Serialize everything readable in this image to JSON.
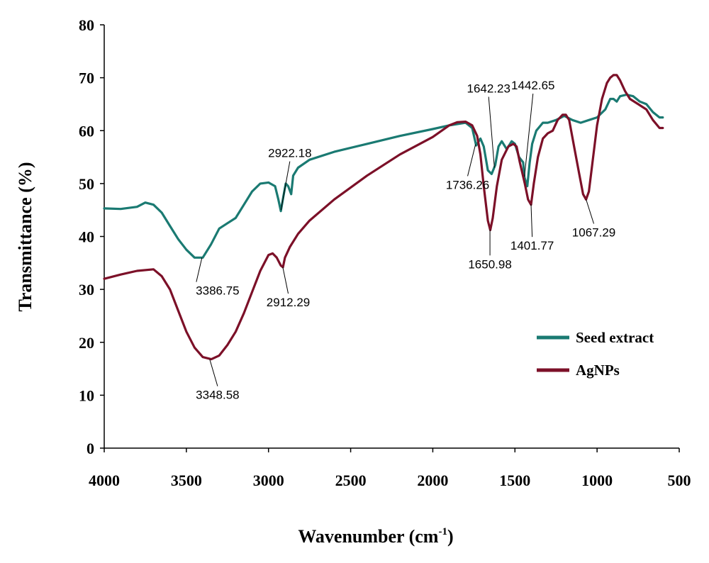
{
  "chart_data": {
    "type": "line",
    "xlabel": "Wavenumber (cm",
    "xlabel_sup": "-1",
    "xlabel_end": ")",
    "ylabel": "Transmittance (%)",
    "xlim": [
      4000,
      500
    ],
    "ylim": [
      0,
      80
    ],
    "x_ticks": [
      4000,
      3500,
      3000,
      2500,
      2000,
      1500,
      1000,
      500
    ],
    "y_ticks": [
      0,
      10,
      20,
      30,
      40,
      50,
      60,
      70,
      80
    ],
    "grid": false,
    "legend_position": "bottom-right",
    "series": [
      {
        "name": "Seed extract",
        "color": "#1a7a72",
        "points": [
          [
            4000,
            45.3
          ],
          [
            3900,
            45.2
          ],
          [
            3800,
            45.6
          ],
          [
            3750,
            46.4
          ],
          [
            3700,
            46.0
          ],
          [
            3650,
            44.5
          ],
          [
            3600,
            42.0
          ],
          [
            3550,
            39.5
          ],
          [
            3500,
            37.5
          ],
          [
            3450,
            36.0
          ],
          [
            3400,
            36.0
          ],
          [
            3350,
            38.5
          ],
          [
            3300,
            41.5
          ],
          [
            3250,
            42.5
          ],
          [
            3200,
            43.5
          ],
          [
            3150,
            46.0
          ],
          [
            3100,
            48.5
          ],
          [
            3050,
            50.0
          ],
          [
            3000,
            50.2
          ],
          [
            2960,
            49.5
          ],
          [
            2940,
            47.0
          ],
          [
            2925,
            44.8
          ],
          [
            2910,
            47.5
          ],
          [
            2895,
            50.0
          ],
          [
            2880,
            49.5
          ],
          [
            2862,
            48.0
          ],
          [
            2850,
            51.5
          ],
          [
            2820,
            53.0
          ],
          [
            2750,
            54.5
          ],
          [
            2600,
            56.0
          ],
          [
            2400,
            57.5
          ],
          [
            2200,
            59.0
          ],
          [
            2000,
            60.3
          ],
          [
            1900,
            61.0
          ],
          [
            1800,
            61.5
          ],
          [
            1760,
            60.5
          ],
          [
            1736,
            57.2
          ],
          [
            1710,
            58.5
          ],
          [
            1690,
            57.0
          ],
          [
            1665,
            52.5
          ],
          [
            1642,
            51.8
          ],
          [
            1620,
            53.5
          ],
          [
            1600,
            57.0
          ],
          [
            1580,
            58.0
          ],
          [
            1550,
            56.5
          ],
          [
            1520,
            58.0
          ],
          [
            1500,
            57.5
          ],
          [
            1475,
            55.0
          ],
          [
            1450,
            54.0
          ],
          [
            1442,
            51.2
          ],
          [
            1425,
            49.5
          ],
          [
            1410,
            54.0
          ],
          [
            1395,
            57.5
          ],
          [
            1370,
            60.0
          ],
          [
            1330,
            61.5
          ],
          [
            1300,
            61.5
          ],
          [
            1250,
            62.0
          ],
          [
            1200,
            62.8
          ],
          [
            1150,
            62.0
          ],
          [
            1100,
            61.5
          ],
          [
            1050,
            62.0
          ],
          [
            1000,
            62.5
          ],
          [
            950,
            64.0
          ],
          [
            920,
            66.0
          ],
          [
            900,
            66.0
          ],
          [
            880,
            65.5
          ],
          [
            860,
            66.5
          ],
          [
            820,
            66.8
          ],
          [
            780,
            66.5
          ],
          [
            740,
            65.5
          ],
          [
            700,
            65.0
          ],
          [
            660,
            63.5
          ],
          [
            620,
            62.5
          ],
          [
            600,
            62.5
          ]
        ]
      },
      {
        "name": "AgNPs",
        "color": "#7c1028",
        "points": [
          [
            4000,
            32.0
          ],
          [
            3900,
            32.8
          ],
          [
            3800,
            33.5
          ],
          [
            3700,
            33.8
          ],
          [
            3650,
            32.5
          ],
          [
            3600,
            30.0
          ],
          [
            3550,
            26.0
          ],
          [
            3500,
            22.0
          ],
          [
            3450,
            19.0
          ],
          [
            3400,
            17.2
          ],
          [
            3348,
            16.8
          ],
          [
            3300,
            17.5
          ],
          [
            3250,
            19.5
          ],
          [
            3200,
            22.0
          ],
          [
            3150,
            25.5
          ],
          [
            3100,
            29.5
          ],
          [
            3050,
            33.5
          ],
          [
            3000,
            36.5
          ],
          [
            2975,
            36.8
          ],
          [
            2950,
            36.0
          ],
          [
            2925,
            34.5
          ],
          [
            2912,
            34.2
          ],
          [
            2900,
            36.0
          ],
          [
            2870,
            38.0
          ],
          [
            2820,
            40.5
          ],
          [
            2750,
            43.0
          ],
          [
            2600,
            47.0
          ],
          [
            2400,
            51.5
          ],
          [
            2200,
            55.5
          ],
          [
            2000,
            58.8
          ],
          [
            1900,
            61.0
          ],
          [
            1850,
            61.6
          ],
          [
            1800,
            61.7
          ],
          [
            1760,
            61.0
          ],
          [
            1730,
            59.0
          ],
          [
            1710,
            55.5
          ],
          [
            1690,
            49.5
          ],
          [
            1665,
            43.0
          ],
          [
            1650,
            41.2
          ],
          [
            1635,
            43.5
          ],
          [
            1610,
            49.5
          ],
          [
            1580,
            54.5
          ],
          [
            1540,
            57.0
          ],
          [
            1510,
            57.5
          ],
          [
            1490,
            57.0
          ],
          [
            1470,
            54.0
          ],
          [
            1440,
            50.0
          ],
          [
            1420,
            47.0
          ],
          [
            1402,
            46.0
          ],
          [
            1385,
            50.0
          ],
          [
            1360,
            55.0
          ],
          [
            1330,
            58.5
          ],
          [
            1300,
            59.5
          ],
          [
            1270,
            60.0
          ],
          [
            1240,
            62.0
          ],
          [
            1210,
            63.0
          ],
          [
            1190,
            63.0
          ],
          [
            1170,
            62.0
          ],
          [
            1140,
            57.0
          ],
          [
            1110,
            52.0
          ],
          [
            1085,
            48.0
          ],
          [
            1067,
            47.0
          ],
          [
            1050,
            48.5
          ],
          [
            1030,
            53.5
          ],
          [
            1000,
            61.0
          ],
          [
            970,
            66.0
          ],
          [
            940,
            69.0
          ],
          [
            920,
            70.0
          ],
          [
            900,
            70.5
          ],
          [
            880,
            70.5
          ],
          [
            860,
            69.5
          ],
          [
            830,
            67.5
          ],
          [
            800,
            66.0
          ],
          [
            750,
            65.0
          ],
          [
            700,
            64.0
          ],
          [
            660,
            62.0
          ],
          [
            620,
            60.5
          ],
          [
            600,
            60.5
          ]
        ]
      }
    ],
    "annotations": [
      {
        "text": "2922.18",
        "point": [
          2924,
          45.0
        ],
        "label_at": [
          2870,
          55.0
        ]
      },
      {
        "text": "3386.75",
        "point": [
          3405,
          36.0
        ],
        "label_at": [
          3310,
          29.0
        ]
      },
      {
        "text": "2912.29",
        "point": [
          2913,
          34.2
        ],
        "label_at": [
          2880,
          26.8
        ]
      },
      {
        "text": "3348.58",
        "point": [
          3358,
          16.8
        ],
        "label_at": [
          3310,
          9.3
        ]
      },
      {
        "text": "1642.23",
        "point": [
          1625,
          53.0
        ],
        "label_at": [
          1660,
          67.2
        ]
      },
      {
        "text": "1442.65",
        "point": [
          1442,
          51.3
        ],
        "label_at": [
          1390,
          67.8
        ]
      },
      {
        "text": "1736.26",
        "point": [
          1740,
          57.4
        ],
        "label_at": [
          1788,
          49.0
        ]
      },
      {
        "text": "1650.98",
        "point": [
          1652,
          41.3
        ],
        "label_at": [
          1652,
          34.0
        ]
      },
      {
        "text": "1401.77",
        "point": [
          1402,
          46.1
        ],
        "label_at": [
          1395,
          37.5
        ]
      },
      {
        "text": "1067.29",
        "point": [
          1067,
          47.0
        ],
        "label_at": [
          1020,
          40.0
        ]
      }
    ]
  }
}
